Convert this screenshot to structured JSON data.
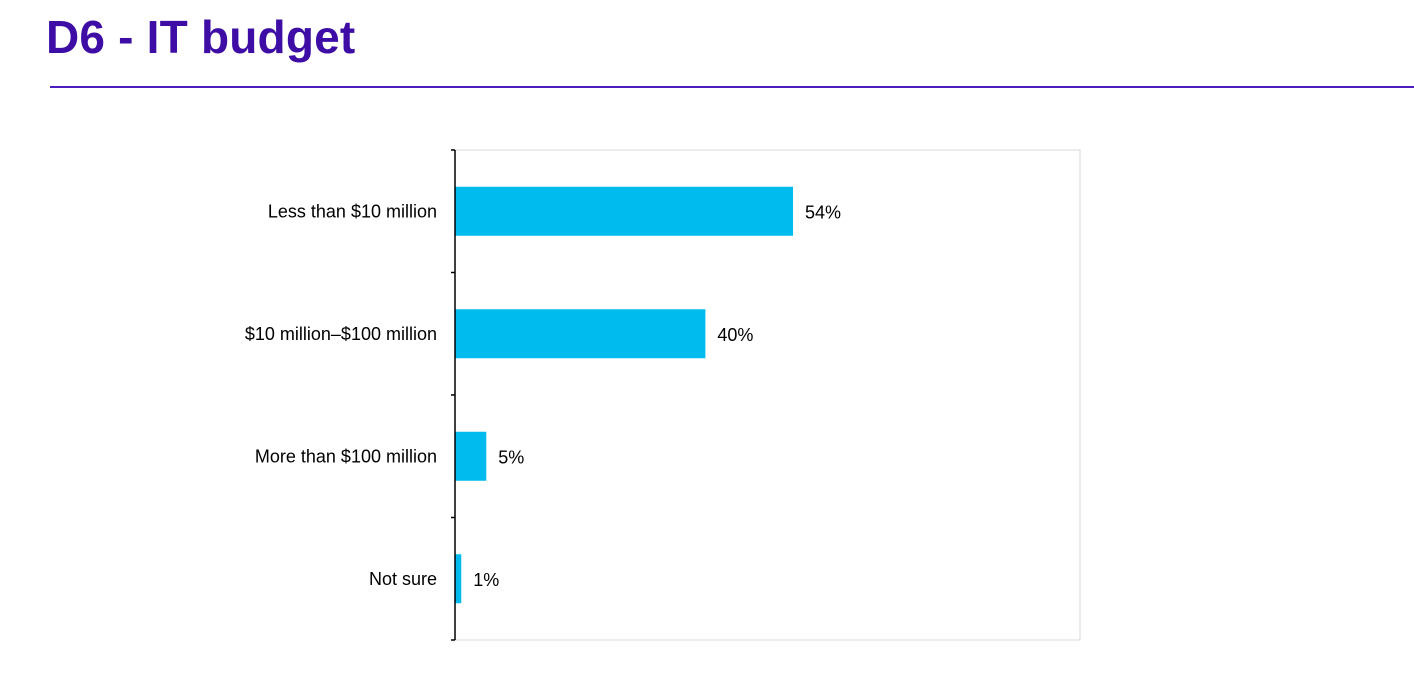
{
  "page": {
    "title": "D6 - IT budget"
  },
  "colors": {
    "title": "#3d0da6",
    "rule": "#4b1dbe",
    "bar": "#00bbee",
    "axis": "#000000",
    "plot_border": "#d9d9d9"
  },
  "chart_data": {
    "type": "bar",
    "orientation": "horizontal",
    "categories": [
      "Less than $10 million",
      "$10 million–$100 million",
      "More than $100 million",
      "Not sure"
    ],
    "values": [
      54,
      40,
      5,
      1
    ],
    "data_labels": [
      "54%",
      "40%",
      "5%",
      "1%"
    ],
    "unit": "%",
    "xlim": [
      0,
      100
    ],
    "grid": false,
    "legend": "none"
  }
}
